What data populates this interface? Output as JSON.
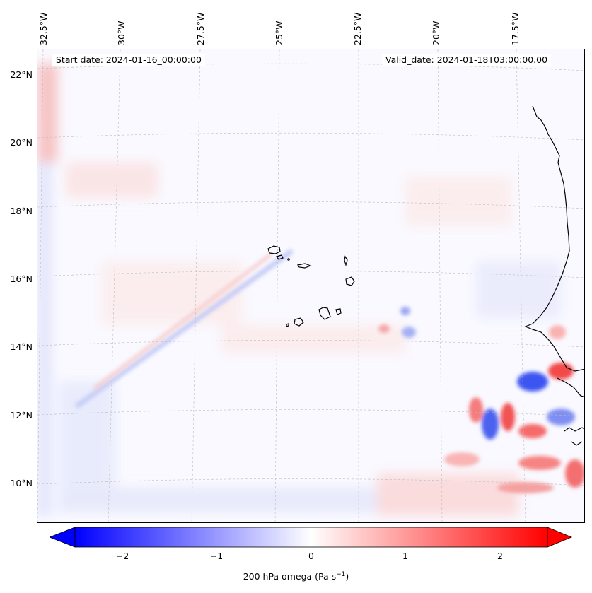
{
  "map": {
    "start_date": "Start date: 2024-01-16_00:00:00",
    "valid_date": "Valid_date: 2024-01-18T03:00:00.00",
    "lon_labels": [
      "32.5°W",
      "30°W",
      "27.5°W",
      "25°W",
      "22.5°W",
      "20°W",
      "17.5°W"
    ],
    "lat_labels": [
      "22°N",
      "20°N",
      "18°N",
      "16°N",
      "14°N",
      "12°N",
      "10°N"
    ],
    "field": "200 hPa omega",
    "region": "Cape Verde Islands / West African coast"
  },
  "colorbar": {
    "title_main": "200 hPa omega (Pa s",
    "title_sup": "−1",
    "title_end": ")",
    "ticks": [
      "−2",
      "−1",
      "0",
      "1",
      "2"
    ],
    "range": [
      -2.5,
      2.5
    ],
    "cmap": "bwr",
    "colors": {
      "low": "#0000ff",
      "mid": "#ffffff",
      "high": "#ff0000"
    }
  }
}
